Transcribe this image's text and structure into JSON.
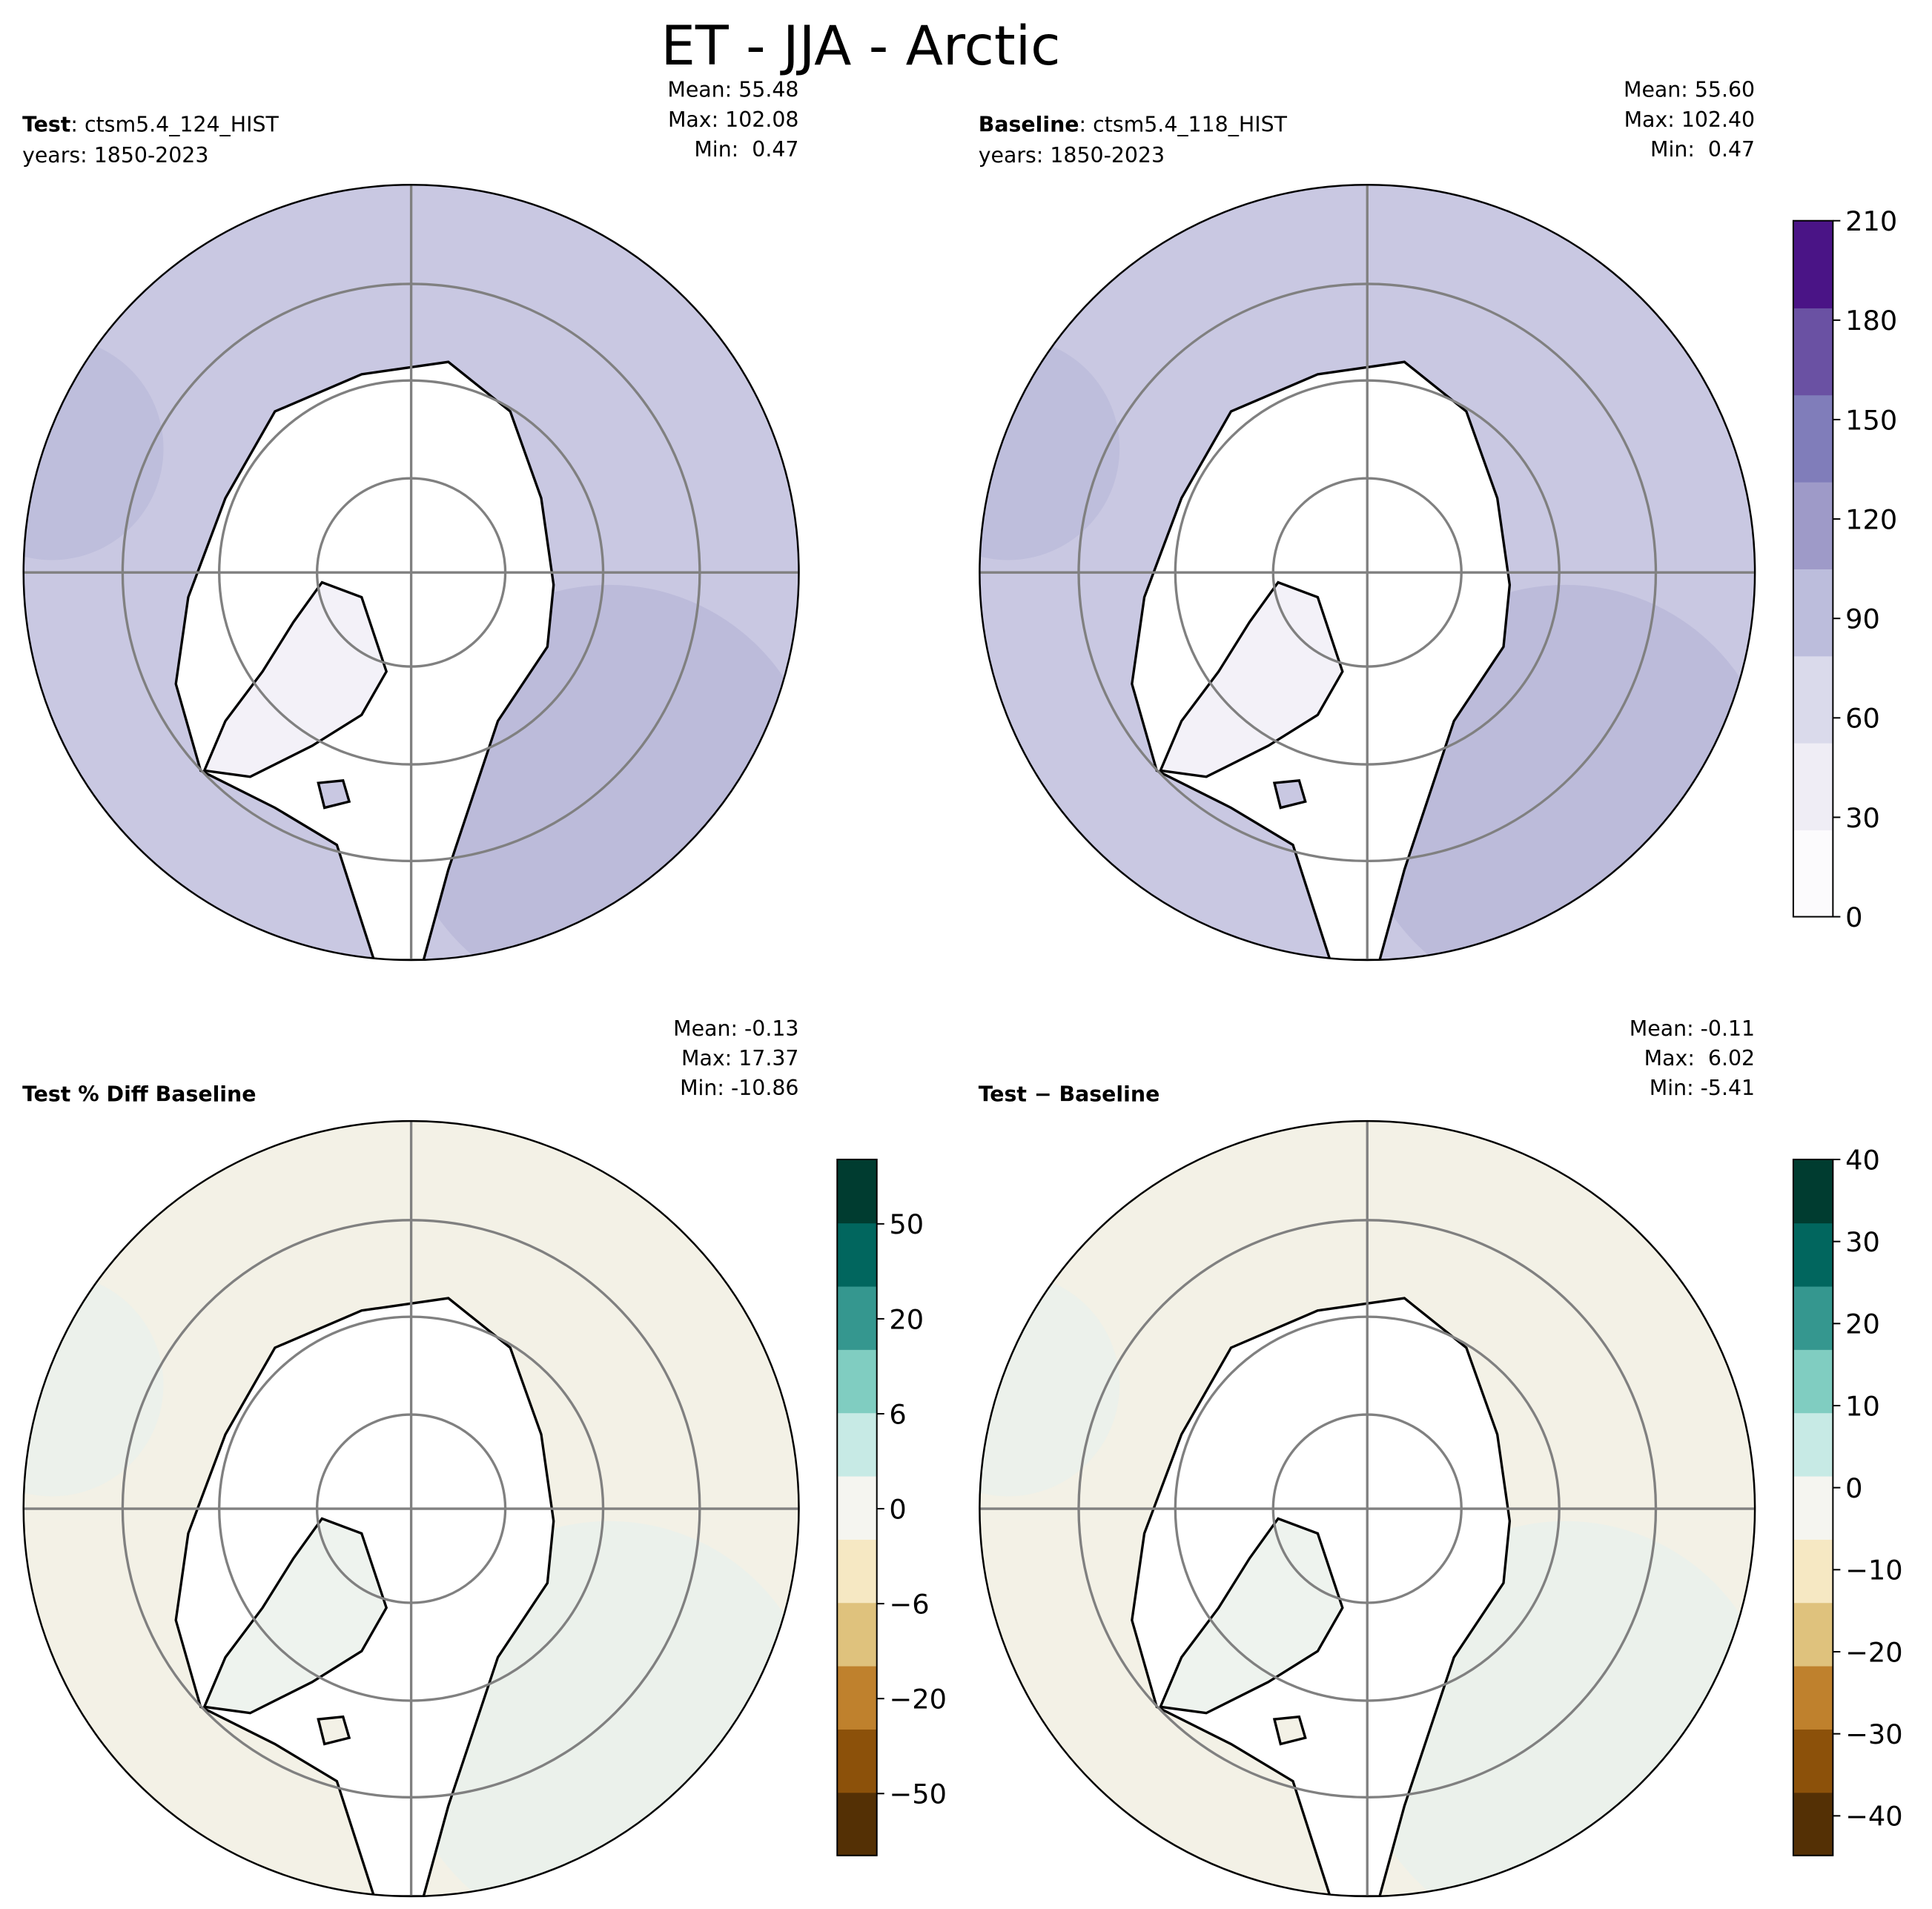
{
  "title": "ET - JJA - Arctic",
  "panels": [
    {
      "label": "Test",
      "case": ": ctsm5.4_124_HIST",
      "years": "years: 1850-2023",
      "mean": "Mean: 55.48",
      "max": "Max: 102.08",
      "min": "Min:  0.47"
    },
    {
      "label": "Baseline",
      "case": ": ctsm5.4_118_HIST",
      "years": "years: 1850-2023",
      "mean": "Mean: 55.60",
      "max": "Max: 102.40",
      "min": "Min:  0.47"
    },
    {
      "label": "Test % Diff Baseline",
      "mean": "Mean: -0.13",
      "max": "Max: 17.37",
      "min": "Min: -10.86"
    },
    {
      "label": "Test − Baseline",
      "mean": "Mean: -0.11",
      "max": "Max:  6.02",
      "min": "Min: -5.41"
    }
  ],
  "colorbars": [
    {
      "ticks": [
        "0",
        "30",
        "60",
        "90",
        "120",
        "150",
        "180",
        "210"
      ],
      "colors": [
        "#fcfbfd",
        "#efedf5",
        "#dadaeb",
        "#bcbddc",
        "#9e9ac8",
        "#807dba",
        "#6a51a3",
        "#4a1486"
      ]
    },
    {
      "ticks": [
        "−50",
        "−20",
        "−6",
        "0",
        "6",
        "20",
        "50"
      ],
      "colors": [
        "#543005",
        "#8c510a",
        "#bf812d",
        "#dfc27d",
        "#f6e8c3",
        "#f5f5f0",
        "#c7eae5",
        "#80cdc1",
        "#35978f",
        "#01665e",
        "#003c30"
      ]
    },
    {
      "ticks": [
        "−40",
        "−30",
        "−20",
        "−10",
        "0",
        "10",
        "20",
        "30",
        "40"
      ],
      "colors": [
        "#543005",
        "#8c510a",
        "#bf812d",
        "#dfc27d",
        "#f6e8c3",
        "#f5f5f0",
        "#c7eae5",
        "#80cdc1",
        "#35978f",
        "#01665e",
        "#003c30"
      ]
    }
  ]
}
